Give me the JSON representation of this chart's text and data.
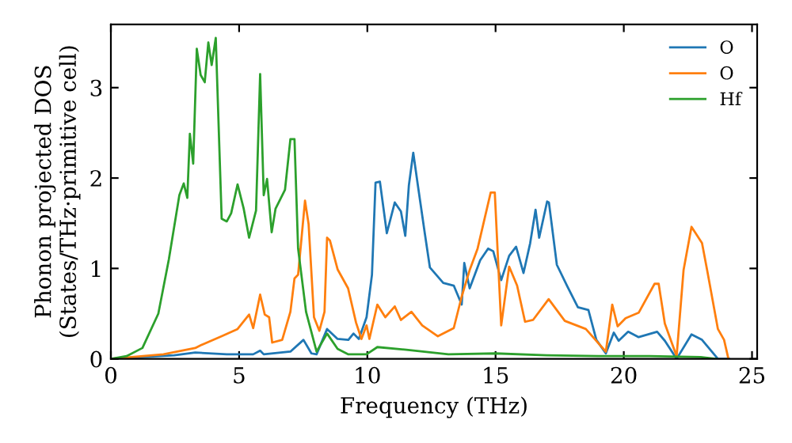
{
  "chart_data": {
    "type": "line",
    "xlabel": "Frequency (THz)",
    "ylabel": "Phonon projected DOS\n(States/THz·primitive cell)",
    "xlim": [
      0,
      25.2
    ],
    "ylim": [
      0,
      3.7
    ],
    "xticks": [
      0,
      5,
      10,
      15,
      20,
      25
    ],
    "yticks": [
      0,
      1,
      2,
      3
    ],
    "grid": false,
    "legend": "top right",
    "marker": "none",
    "line_style": "solid",
    "series": [
      {
        "name": "O",
        "color": "#1f77b4",
        "x": [
          0,
          2.47,
          3.29,
          4.52,
          5.55,
          5.82,
          5.96,
          7.0,
          7.51,
          7.82,
          8.02,
          8.43,
          8.84,
          9.26,
          9.46,
          9.67,
          9.97,
          10.18,
          10.32,
          10.49,
          10.76,
          11.07,
          11.31,
          11.48,
          11.62,
          11.79,
          11.97,
          12.24,
          12.44,
          12.96,
          13.37,
          13.68,
          13.78,
          13.99,
          14.4,
          14.71,
          14.91,
          15.22,
          15.53,
          15.8,
          16.09,
          16.35,
          16.56,
          16.7,
          17.01,
          17.08,
          17.39,
          17.8,
          18.21,
          18.62,
          18.93,
          19.3,
          19.61,
          19.8,
          20.17,
          20.58,
          21.3,
          21.6,
          22.06,
          22.64,
          23.05,
          23.67,
          24.1
        ],
        "values": [
          0,
          0.04,
          0.07,
          0.05,
          0.05,
          0.09,
          0.05,
          0.08,
          0.21,
          0.06,
          0.05,
          0.33,
          0.22,
          0.21,
          0.28,
          0.22,
          0.46,
          0.93,
          1.95,
          1.96,
          1.39,
          1.73,
          1.63,
          1.36,
          1.92,
          2.28,
          1.92,
          1.39,
          1.01,
          0.84,
          0.81,
          0.6,
          1.06,
          0.78,
          1.09,
          1.22,
          1.19,
          0.87,
          1.14,
          1.24,
          0.95,
          1.28,
          1.65,
          1.34,
          1.74,
          1.73,
          1.04,
          0.8,
          0.57,
          0.54,
          0.21,
          0.06,
          0.29,
          0.2,
          0.3,
          0.24,
          0.3,
          0.2,
          0,
          0.27,
          0.21,
          0,
          0
        ]
      },
      {
        "name": "O",
        "color": "#ff7f0e",
        "x": [
          0,
          2.05,
          3.29,
          3.5,
          4.32,
          4.94,
          5.39,
          5.55,
          5.82,
          6.0,
          6.17,
          6.29,
          6.68,
          7.0,
          7.16,
          7.3,
          7.57,
          7.71,
          7.92,
          8.13,
          8.33,
          8.43,
          8.54,
          8.84,
          9.25,
          9.56,
          9.77,
          9.97,
          10.08,
          10.39,
          10.7,
          11.07,
          11.31,
          11.72,
          12.14,
          12.75,
          13.37,
          13.68,
          14.0,
          14.3,
          14.81,
          14.97,
          15.22,
          15.53,
          15.84,
          16.15,
          16.46,
          17.07,
          17.7,
          18.52,
          19.3,
          19.55,
          19.76,
          20.07,
          20.58,
          21.2,
          21.36,
          21.6,
          22.06,
          22.33,
          22.64,
          23.05,
          23.25,
          23.67,
          23.91,
          24.08
        ],
        "values": [
          0,
          0.05,
          0.12,
          0.15,
          0.25,
          0.33,
          0.49,
          0.34,
          0.71,
          0.49,
          0.46,
          0.18,
          0.21,
          0.52,
          0.89,
          0.93,
          1.75,
          1.49,
          0.46,
          0.31,
          0.52,
          1.34,
          1.31,
          0.99,
          0.78,
          0.4,
          0.22,
          0.37,
          0.22,
          0.6,
          0.46,
          0.58,
          0.43,
          0.52,
          0.37,
          0.25,
          0.34,
          0.69,
          0.99,
          1.22,
          1.84,
          1.84,
          0.37,
          1.02,
          0.81,
          0.41,
          0.43,
          0.66,
          0.42,
          0.33,
          0.08,
          0.6,
          0.36,
          0.45,
          0.51,
          0.83,
          0.83,
          0.39,
          0.03,
          0.98,
          1.46,
          1.28,
          0.98,
          0.33,
          0.21,
          0
        ]
      },
      {
        "name": "Hf",
        "color": "#2ca02c",
        "x": [
          0,
          0.61,
          1.23,
          1.85,
          2.26,
          2.67,
          2.84,
          2.98,
          3.08,
          3.21,
          3.35,
          3.5,
          3.66,
          3.8,
          3.93,
          4.09,
          4.32,
          4.52,
          4.69,
          4.94,
          5.18,
          5.39,
          5.66,
          5.82,
          5.96,
          6.09,
          6.27,
          6.42,
          6.79,
          7.0,
          7.16,
          7.3,
          7.61,
          8.02,
          8.43,
          8.84,
          9.26,
          9.97,
          10.39,
          11.52,
          13.16,
          15.0,
          17.0,
          19.0,
          21.0,
          23.0,
          23.6
        ],
        "values": [
          0,
          0.03,
          0.12,
          0.5,
          1.1,
          1.81,
          1.94,
          1.78,
          2.49,
          2.16,
          3.43,
          3.14,
          3.06,
          3.5,
          3.25,
          3.55,
          1.55,
          1.52,
          1.61,
          1.93,
          1.66,
          1.34,
          1.64,
          3.15,
          1.81,
          1.99,
          1.4,
          1.66,
          1.87,
          2.43,
          2.43,
          1.22,
          0.52,
          0.08,
          0.28,
          0.11,
          0.05,
          0.05,
          0.13,
          0.1,
          0.05,
          0.06,
          0.04,
          0.03,
          0.03,
          0.02,
          0
        ]
      }
    ]
  }
}
